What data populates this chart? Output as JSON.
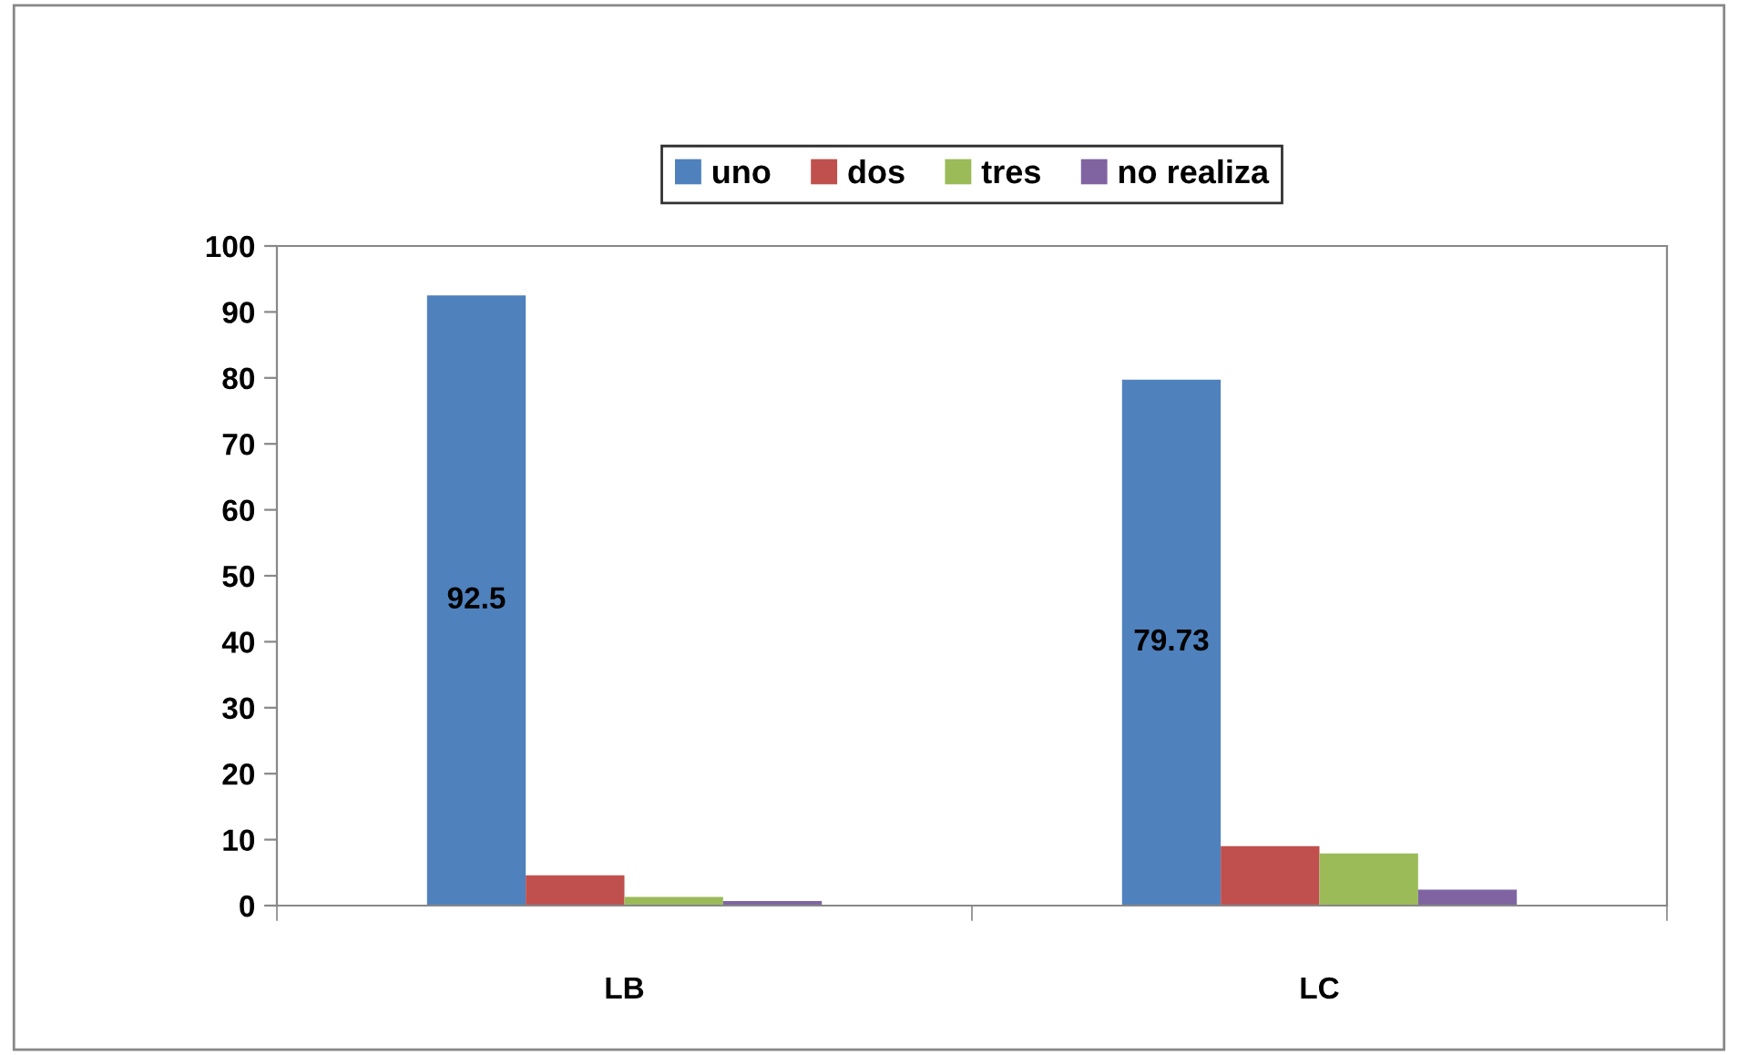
{
  "chart_data": {
    "type": "bar",
    "categories": [
      "LB",
      "LC"
    ],
    "series": [
      {
        "name": "uno",
        "color": "#4f81bd",
        "values": [
          92.5,
          79.73
        ],
        "value_labels": [
          "92.5",
          "79.73"
        ]
      },
      {
        "name": "dos",
        "color": "#c0504d",
        "values": [
          4.6,
          9.0
        ]
      },
      {
        "name": "tres",
        "color": "#9bbb59",
        "values": [
          1.3,
          7.9
        ]
      },
      {
        "name": "no realiza",
        "color": "#8064a2",
        "values": [
          0.7,
          2.4
        ]
      }
    ],
    "ylim": [
      0,
      100
    ],
    "yticks": [
      0,
      10,
      20,
      30,
      40,
      50,
      60,
      70,
      80,
      90,
      100
    ],
    "grid": false,
    "legend": "top"
  }
}
